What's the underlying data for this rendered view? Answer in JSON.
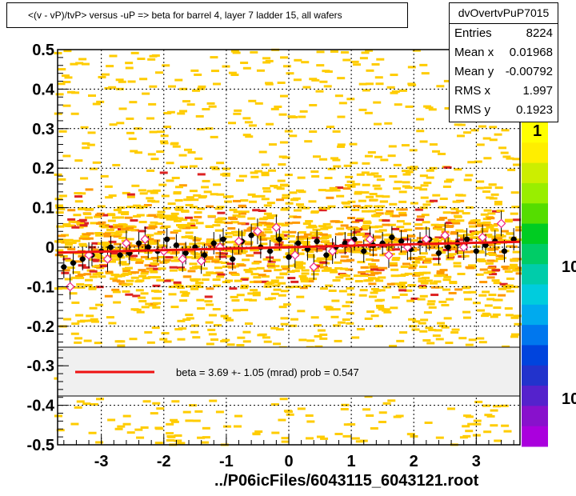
{
  "title": "<(v - vP)/tvP> versus  -uP => beta for barrel 4, layer 7 ladder 15, all wafers",
  "stats": {
    "name": "dvOvertvPuP7015",
    "rows": [
      {
        "label": "Entries",
        "value": "8224"
      },
      {
        "label": "Mean x",
        "value": "0.01968"
      },
      {
        "label": "Mean y",
        "value": "-0.00792"
      },
      {
        "label": "RMS x",
        "value": "1.997"
      },
      {
        "label": "RMS y",
        "value": "0.1923"
      }
    ]
  },
  "footer": "../P06icFiles/6043115_6043121.root",
  "colors": {
    "frame": "#000000",
    "fit_line": "#ee1111",
    "density_low": "#ffcc00",
    "density_mid": "#ff9900",
    "density_high": "#dd2222",
    "points": "#000000",
    "open_markers": "#ee2288",
    "legend_bg": "#f0f0f0"
  },
  "chart_data": {
    "type": "scatter",
    "xlim": [
      -3.7,
      3.7
    ],
    "ylim": [
      -0.5,
      0.5
    ],
    "x_ticks": [
      "-3",
      "-2",
      "-1",
      "0",
      "1",
      "2",
      "3"
    ],
    "y_ticks": [
      "-0.5",
      "-0.4",
      "-0.3",
      "-0.2",
      "-0.1",
      "0",
      "0.1",
      "0.2",
      "0.3",
      "0.4",
      "0.5"
    ],
    "grid": true,
    "colorbar": {
      "labels": [
        "1",
        "10",
        "10"
      ]
    },
    "fit": {
      "label": "beta =    3.69 +-  1.05 (mrad) prob = 0.547",
      "x": [
        -3.7,
        3.7
      ],
      "y": [
        -0.0137,
        0.0137
      ]
    },
    "profile_points": {
      "x": [
        -3.6,
        -3.45,
        -3.3,
        -3.15,
        -3.0,
        -2.85,
        -2.7,
        -2.55,
        -2.4,
        -2.25,
        -2.1,
        -1.95,
        -1.8,
        -1.65,
        -1.5,
        -1.35,
        -1.2,
        -1.05,
        -0.9,
        -0.75,
        -0.6,
        -0.45,
        -0.3,
        -0.15,
        0.0,
        0.15,
        0.3,
        0.45,
        0.6,
        0.75,
        0.9,
        1.05,
        1.2,
        1.35,
        1.5,
        1.65,
        1.8,
        1.95,
        2.1,
        2.25,
        2.4,
        2.55,
        2.7,
        2.85,
        3.0,
        3.15,
        3.3,
        3.45,
        3.6
      ],
      "y": [
        -0.05,
        -0.04,
        -0.03,
        -0.02,
        -0.01,
        0.0,
        -0.02,
        -0.015,
        0.01,
        0.0,
        -0.01,
        0.02,
        0.005,
        -0.015,
        0.0,
        -0.02,
        0.01,
        0.02,
        -0.03,
        0.015,
        0.03,
        0.0,
        -0.01,
        0.02,
        -0.025,
        0.01,
        -0.005,
        0.015,
        -0.02,
        0.0,
        0.01,
        0.02,
        -0.01,
        0.005,
        0.01,
        0.025,
        0.015,
        -0.005,
        0.01,
        0.02,
        -0.015,
        0.0,
        0.01,
        0.02,
        -0.01,
        0.005,
        0.015,
        -0.01,
        0.02
      ]
    },
    "open_points": {
      "x": [
        -3.5,
        -3.2,
        -2.9,
        -2.6,
        -2.3,
        -2.0,
        -1.7,
        -1.4,
        -1.1,
        -0.8,
        -0.5,
        -0.2,
        0.1,
        0.4,
        0.7,
        1.0,
        1.3,
        1.6,
        1.9,
        2.2,
        2.5,
        2.8,
        3.1,
        3.4
      ],
      "y": [
        -0.1,
        -0.02,
        -0.03,
        0.01,
        0.02,
        -0.01,
        -0.03,
        -0.035,
        0.0,
        0.015,
        0.04,
        0.05,
        -0.02,
        -0.05,
        -0.01,
        0.01,
        0.02,
        -0.02,
        0.0,
        0.02,
        0.03,
        0.0,
        0.025,
        0.06
      ]
    }
  }
}
